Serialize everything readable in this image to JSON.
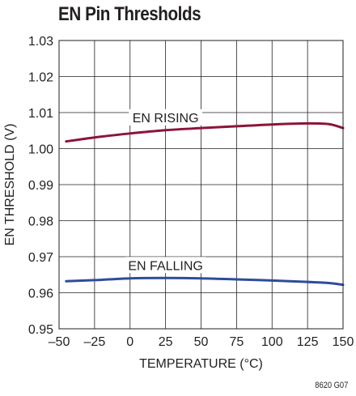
{
  "figure_id": "8620 G07",
  "chart_data": {
    "type": "line",
    "title": "EN Pin Thresholds",
    "xlabel": "TEMPERATURE (°C)",
    "ylabel": "EN THRESHOLD (V)",
    "xlim": [
      -50,
      150
    ],
    "ylim": [
      0.95,
      1.03
    ],
    "xticks": [
      -50,
      -25,
      0,
      25,
      50,
      75,
      100,
      125,
      150
    ],
    "xtick_labels": [
      "–50",
      "–25",
      "0",
      "25",
      "50",
      "75",
      "100",
      "125",
      "150"
    ],
    "yticks": [
      0.95,
      0.96,
      0.97,
      0.98,
      0.99,
      1.0,
      1.01,
      1.02,
      1.03
    ],
    "ytick_labels": [
      "0.95",
      "0.96",
      "0.97",
      "0.98",
      "0.99",
      "1.00",
      "1.01",
      "1.02",
      "1.03"
    ],
    "grid": true,
    "series": [
      {
        "name": "EN RISING",
        "color": "#8b1538",
        "x": [
          -45,
          -25,
          0,
          25,
          50,
          75,
          100,
          125,
          140,
          150
        ],
        "y": [
          1.002,
          1.0031,
          1.0042,
          1.0051,
          1.0057,
          1.0062,
          1.0067,
          1.007,
          1.0068,
          1.0057
        ]
      },
      {
        "name": "EN FALLING",
        "color": "#2f4c9c",
        "x": [
          -45,
          -25,
          0,
          25,
          50,
          75,
          100,
          125,
          140,
          150
        ],
        "y": [
          0.9632,
          0.9635,
          0.964,
          0.9641,
          0.964,
          0.9637,
          0.9634,
          0.963,
          0.9627,
          0.9622
        ]
      }
    ]
  }
}
